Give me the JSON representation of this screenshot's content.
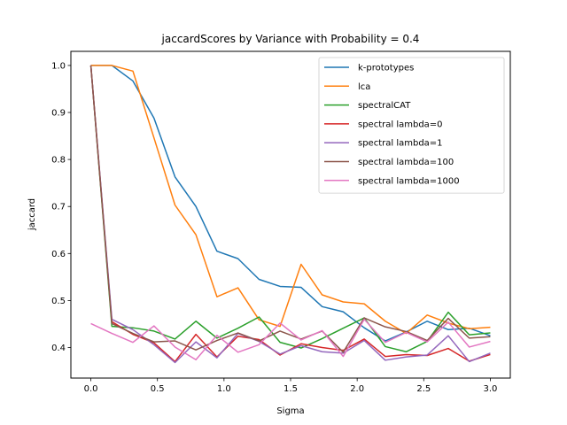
{
  "chart_data": {
    "type": "line",
    "title": "jaccardScores by Variance with Probability = 0.4",
    "xlabel": "Sigma",
    "ylabel": "jaccard",
    "xlim": [
      -0.15,
      3.15
    ],
    "ylim": [
      0.335,
      1.03
    ],
    "xticks": [
      0.0,
      0.5,
      1.0,
      1.5,
      2.0,
      2.5,
      3.0
    ],
    "xtick_labels": [
      "0.0",
      "0.5",
      "1.0",
      "1.5",
      "2.0",
      "2.5",
      "3.0"
    ],
    "yticks": [
      0.4,
      0.5,
      0.6,
      0.7,
      0.8,
      0.9,
      1.0
    ],
    "ytick_labels": [
      "0.4",
      "0.5",
      "0.6",
      "0.7",
      "0.8",
      "0.9",
      "1.0"
    ],
    "grid": false,
    "legend_position": "upper-right",
    "x": [
      0.0,
      0.158,
      0.316,
      0.474,
      0.632,
      0.789,
      0.947,
      1.105,
      1.263,
      1.421,
      1.579,
      1.737,
      1.895,
      2.053,
      2.211,
      2.368,
      2.526,
      2.684,
      2.842,
      3.0
    ],
    "series": [
      {
        "name": "k-prototypes",
        "color": "#1f77b4",
        "values": [
          1.0,
          1.0,
          0.967,
          0.888,
          0.763,
          0.7,
          0.605,
          0.589,
          0.545,
          0.53,
          0.528,
          0.487,
          0.476,
          0.442,
          0.414,
          0.433,
          0.456,
          0.438,
          0.441,
          0.425
        ]
      },
      {
        "name": "lca",
        "color": "#ff7f0e",
        "values": [
          1.0,
          1.0,
          0.988,
          0.846,
          0.703,
          0.64,
          0.508,
          0.527,
          0.459,
          0.445,
          0.577,
          0.512,
          0.497,
          0.493,
          0.456,
          0.43,
          0.469,
          0.452,
          0.44,
          0.443
        ]
      },
      {
        "name": "spectralCAT",
        "color": "#2ca02c",
        "values": [
          1.0,
          0.445,
          0.442,
          0.435,
          0.418,
          0.456,
          0.42,
          0.441,
          0.465,
          0.411,
          0.399,
          0.419,
          0.441,
          0.463,
          0.402,
          0.391,
          0.413,
          0.475,
          0.427,
          0.431
        ]
      },
      {
        "name": "spectral lambda=0",
        "color": "#d62728",
        "values": [
          1.0,
          0.455,
          0.428,
          0.41,
          0.37,
          0.428,
          0.38,
          0.424,
          0.417,
          0.384,
          0.408,
          0.4,
          0.394,
          0.418,
          0.381,
          0.385,
          0.383,
          0.398,
          0.371,
          0.385
        ]
      },
      {
        "name": "spectral lambda=1",
        "color": "#9467bd",
        "values": [
          1.0,
          0.46,
          0.438,
          0.406,
          0.368,
          0.412,
          0.378,
          0.43,
          0.413,
          0.386,
          0.404,
          0.391,
          0.388,
          0.415,
          0.373,
          0.38,
          0.384,
          0.425,
          0.37,
          0.388
        ]
      },
      {
        "name": "spectral lambda=100",
        "color": "#8c564b",
        "values": [
          1.0,
          0.451,
          0.43,
          0.412,
          0.414,
          0.395,
          0.415,
          0.431,
          0.414,
          0.435,
          0.418,
          0.435,
          0.39,
          0.463,
          0.444,
          0.434,
          0.415,
          0.462,
          0.42,
          0.423
        ]
      },
      {
        "name": "spectral lambda=1000",
        "color": "#e377c2",
        "values": [
          0.451,
          0.43,
          0.411,
          0.446,
          0.401,
          0.374,
          0.426,
          0.39,
          0.406,
          0.452,
          0.416,
          0.436,
          0.381,
          0.46,
          0.411,
          0.432,
          0.412,
          0.454,
          0.401,
          0.413
        ]
      }
    ]
  }
}
